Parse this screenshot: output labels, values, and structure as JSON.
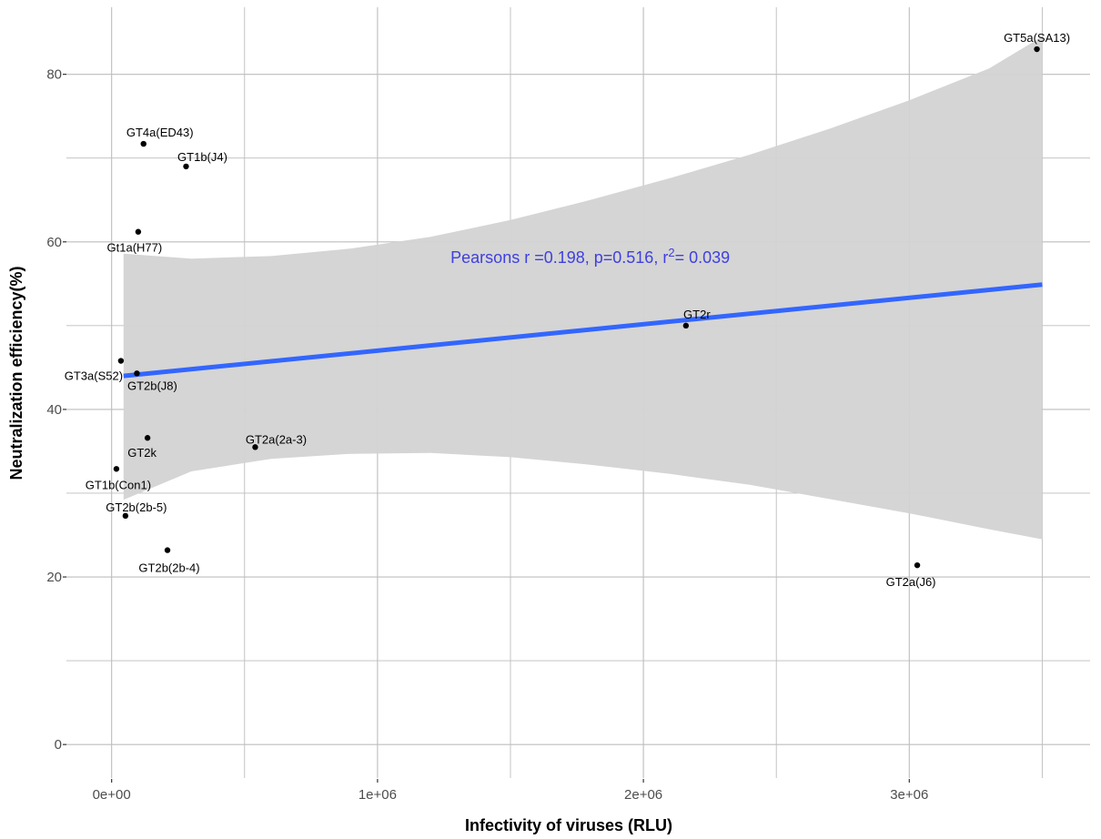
{
  "chart_data": {
    "type": "scatter",
    "title": "",
    "xlabel": "Infectivity of viruses (RLU)",
    "ylabel": "Neutralization efficiency(%)",
    "xlim": [
      -170000,
      3680000
    ],
    "ylim": [
      -4,
      88
    ],
    "x_ticks": [
      {
        "value": 0,
        "label": "0e+00"
      },
      {
        "value": 1000000,
        "label": "1e+06"
      },
      {
        "value": 2000000,
        "label": "2e+06"
      },
      {
        "value": 3000000,
        "label": "3e+06"
      }
    ],
    "y_ticks": [
      {
        "value": 0,
        "label": "0"
      },
      {
        "value": 20,
        "label": "20"
      },
      {
        "value": 40,
        "label": "40"
      },
      {
        "value": 60,
        "label": "60"
      },
      {
        "value": 80,
        "label": "80"
      }
    ],
    "grid": true,
    "points": [
      {
        "label": "GT5a(SA13)",
        "x": 3480000,
        "y": 83.0
      },
      {
        "label": "GT4a(ED43)",
        "x": 120000,
        "y": 71.7
      },
      {
        "label": "GT1b(J4)",
        "x": 280000,
        "y": 69.0
      },
      {
        "label": "Gt1a(H77)",
        "x": 100000,
        "y": 61.2
      },
      {
        "label": "GT2r",
        "x": 2160000,
        "y": 50.0
      },
      {
        "label": "GT3a(S52)",
        "x": 35000,
        "y": 45.8
      },
      {
        "label": "GT2b(J8)",
        "x": 95000,
        "y": 44.3
      },
      {
        "label": "GT2k",
        "x": 135000,
        "y": 36.6
      },
      {
        "label": "GT2a(2a-3)",
        "x": 540000,
        "y": 35.5
      },
      {
        "label": "GT1b(Con1)",
        "x": 18000,
        "y": 32.9
      },
      {
        "label": "GT2b(2b-5)",
        "x": 52000,
        "y": 27.3
      },
      {
        "label": "GT2b(2b-4)",
        "x": 210000,
        "y": 23.2
      },
      {
        "label": "GT2a(J6)",
        "x": 3030000,
        "y": 21.4
      }
    ],
    "regression": {
      "x_start": 45000,
      "y_start": 44.0,
      "x_end": 3500000,
      "y_end": 54.9,
      "color": "#3366ff",
      "ci_color": "#d3d3d3",
      "ci_band": [
        {
          "x": 45000,
          "lo": 29.2,
          "hi": 58.6
        },
        {
          "x": 300000,
          "lo": 32.6,
          "hi": 58.0
        },
        {
          "x": 600000,
          "lo": 34.1,
          "hi": 58.3
        },
        {
          "x": 900000,
          "lo": 34.7,
          "hi": 59.2
        },
        {
          "x": 1200000,
          "lo": 34.8,
          "hi": 60.6
        },
        {
          "x": 1500000,
          "lo": 34.3,
          "hi": 62.6
        },
        {
          "x": 1800000,
          "lo": 33.4,
          "hi": 65.0
        },
        {
          "x": 2100000,
          "lo": 32.3,
          "hi": 67.6
        },
        {
          "x": 2400000,
          "lo": 31.0,
          "hi": 70.4
        },
        {
          "x": 2700000,
          "lo": 29.3,
          "hi": 73.5
        },
        {
          "x": 3000000,
          "lo": 27.6,
          "hi": 76.9
        },
        {
          "x": 3300000,
          "lo": 25.7,
          "hi": 80.7
        },
        {
          "x": 3500000,
          "lo": 24.5,
          "hi": 84.5
        }
      ]
    },
    "annotation": {
      "text_prefix": "Pearsons r =0.198, p=0.516, r",
      "superscript": "2",
      "text_suffix": "= 0.039",
      "x": 1800000,
      "y": 57.5,
      "color": "#3f3fe0"
    },
    "colors": {
      "grid": "#bdbdbd",
      "point": "#000000",
      "point_label": "#000000",
      "tick_label": "#4d4d4d"
    }
  }
}
